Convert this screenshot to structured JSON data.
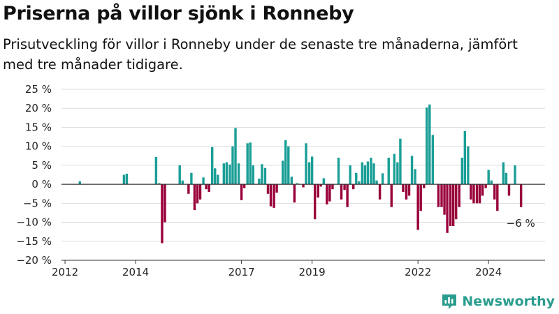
{
  "header": {
    "title": "Priserna på villor sjönk i Ronneby",
    "subtitle": "Prisutveckling för villor i Ronneby under de senaste tre månaderna, jämfört med tre månader tidigare."
  },
  "brand": {
    "name": "Newsworthy"
  },
  "colors": {
    "positive": "#1a9e96",
    "negative": "#99003a",
    "grid": "#dddddd",
    "axis": "#333333",
    "text": "#222222"
  },
  "chart_data": {
    "type": "bar",
    "y_unit": "%",
    "ylim": [
      -20,
      25
    ],
    "yticks": [
      25,
      20,
      15,
      10,
      5,
      0,
      -5,
      -10,
      -15,
      -20
    ],
    "ytick_labels": [
      "25 %",
      "20 %",
      "15 %",
      "10 %",
      "5 %",
      "0 %",
      "−5 %",
      "−10 %",
      "−15 %",
      "−20 %"
    ],
    "xlim": [
      2011.9,
      2025.6
    ],
    "xticks": [
      2012,
      2014,
      2017,
      2019,
      2022,
      2024
    ],
    "xtick_labels": [
      "2012",
      "2014",
      "2017",
      "2019",
      "2022",
      "2024"
    ],
    "grid": true,
    "annotation": "−6 %",
    "values": [
      {
        "x": 2012.42,
        "y": 0.8
      },
      {
        "x": 2013.67,
        "y": 2.5
      },
      {
        "x": 2013.75,
        "y": 2.8
      },
      {
        "x": 2014.58,
        "y": 7.2
      },
      {
        "x": 2014.67,
        "y": 0.3
      },
      {
        "x": 2014.75,
        "y": -15.5
      },
      {
        "x": 2014.83,
        "y": -10
      },
      {
        "x": 2015.25,
        "y": 5
      },
      {
        "x": 2015.33,
        "y": 1
      },
      {
        "x": 2015.5,
        "y": -2.5
      },
      {
        "x": 2015.58,
        "y": 3
      },
      {
        "x": 2015.67,
        "y": -6.8
      },
      {
        "x": 2015.75,
        "y": -5
      },
      {
        "x": 2015.83,
        "y": -4
      },
      {
        "x": 2015.92,
        "y": 1.8
      },
      {
        "x": 2016.0,
        "y": -1.3
      },
      {
        "x": 2016.08,
        "y": -2
      },
      {
        "x": 2016.17,
        "y": 9.8
      },
      {
        "x": 2016.25,
        "y": 4.2
      },
      {
        "x": 2016.33,
        "y": 2.5
      },
      {
        "x": 2016.5,
        "y": 5.5
      },
      {
        "x": 2016.58,
        "y": 5.8
      },
      {
        "x": 2016.67,
        "y": 5.2
      },
      {
        "x": 2016.75,
        "y": 10
      },
      {
        "x": 2016.83,
        "y": 14.8
      },
      {
        "x": 2016.92,
        "y": 5.5
      },
      {
        "x": 2017.0,
        "y": -4.2
      },
      {
        "x": 2017.08,
        "y": -1
      },
      {
        "x": 2017.17,
        "y": 10.8
      },
      {
        "x": 2017.25,
        "y": 11
      },
      {
        "x": 2017.33,
        "y": 5
      },
      {
        "x": 2017.5,
        "y": 1.5
      },
      {
        "x": 2017.58,
        "y": 5.3
      },
      {
        "x": 2017.67,
        "y": 4.3
      },
      {
        "x": 2017.75,
        "y": -2.5
      },
      {
        "x": 2017.83,
        "y": -5.8
      },
      {
        "x": 2017.92,
        "y": -6.2
      },
      {
        "x": 2018.0,
        "y": -2.2
      },
      {
        "x": 2018.17,
        "y": 6.2
      },
      {
        "x": 2018.25,
        "y": 11.6
      },
      {
        "x": 2018.33,
        "y": 10
      },
      {
        "x": 2018.42,
        "y": 2
      },
      {
        "x": 2018.5,
        "y": -4.8
      },
      {
        "x": 2018.58,
        "y": 0.3
      },
      {
        "x": 2018.75,
        "y": -0.8
      },
      {
        "x": 2018.83,
        "y": 10.8
      },
      {
        "x": 2018.92,
        "y": 5.8
      },
      {
        "x": 2019.0,
        "y": 7.3
      },
      {
        "x": 2019.08,
        "y": -9.2
      },
      {
        "x": 2019.17,
        "y": -3.5
      },
      {
        "x": 2019.25,
        "y": -0.6
      },
      {
        "x": 2019.33,
        "y": 1.6
      },
      {
        "x": 2019.42,
        "y": -5.3
      },
      {
        "x": 2019.5,
        "y": -4.5
      },
      {
        "x": 2019.58,
        "y": -1.3
      },
      {
        "x": 2019.75,
        "y": 7
      },
      {
        "x": 2019.83,
        "y": -4
      },
      {
        "x": 2019.92,
        "y": -1.5
      },
      {
        "x": 2020.0,
        "y": -6
      },
      {
        "x": 2020.08,
        "y": 5
      },
      {
        "x": 2020.17,
        "y": -1.3
      },
      {
        "x": 2020.25,
        "y": 3
      },
      {
        "x": 2020.33,
        "y": 0.8
      },
      {
        "x": 2020.42,
        "y": 5.8
      },
      {
        "x": 2020.5,
        "y": 5
      },
      {
        "x": 2020.58,
        "y": 6
      },
      {
        "x": 2020.67,
        "y": 7
      },
      {
        "x": 2020.75,
        "y": 5.5
      },
      {
        "x": 2020.83,
        "y": 1
      },
      {
        "x": 2020.92,
        "y": -4
      },
      {
        "x": 2021.0,
        "y": 2.9
      },
      {
        "x": 2021.17,
        "y": 7
      },
      {
        "x": 2021.25,
        "y": -6
      },
      {
        "x": 2021.33,
        "y": 8
      },
      {
        "x": 2021.42,
        "y": 5.8
      },
      {
        "x": 2021.5,
        "y": 12
      },
      {
        "x": 2021.58,
        "y": -2
      },
      {
        "x": 2021.67,
        "y": -4
      },
      {
        "x": 2021.75,
        "y": -3
      },
      {
        "x": 2021.83,
        "y": 7.5
      },
      {
        "x": 2021.92,
        "y": 4
      },
      {
        "x": 2022.0,
        "y": -12
      },
      {
        "x": 2022.08,
        "y": -7
      },
      {
        "x": 2022.17,
        "y": -1
      },
      {
        "x": 2022.25,
        "y": 20.2
      },
      {
        "x": 2022.33,
        "y": 21
      },
      {
        "x": 2022.42,
        "y": 13
      },
      {
        "x": 2022.58,
        "y": -6
      },
      {
        "x": 2022.67,
        "y": -6
      },
      {
        "x": 2022.75,
        "y": -8
      },
      {
        "x": 2022.83,
        "y": -12.8
      },
      {
        "x": 2022.92,
        "y": -11
      },
      {
        "x": 2023.0,
        "y": -11
      },
      {
        "x": 2023.08,
        "y": -9.2
      },
      {
        "x": 2023.17,
        "y": -6
      },
      {
        "x": 2023.25,
        "y": 7
      },
      {
        "x": 2023.33,
        "y": 14
      },
      {
        "x": 2023.42,
        "y": 10
      },
      {
        "x": 2023.5,
        "y": -4
      },
      {
        "x": 2023.58,
        "y": -5
      },
      {
        "x": 2023.67,
        "y": -5
      },
      {
        "x": 2023.75,
        "y": -5
      },
      {
        "x": 2023.83,
        "y": -3
      },
      {
        "x": 2023.92,
        "y": -1
      },
      {
        "x": 2024.0,
        "y": 3.8
      },
      {
        "x": 2024.08,
        "y": 1
      },
      {
        "x": 2024.17,
        "y": -4
      },
      {
        "x": 2024.25,
        "y": -7
      },
      {
        "x": 2024.42,
        "y": 5.8
      },
      {
        "x": 2024.5,
        "y": 3
      },
      {
        "x": 2024.58,
        "y": -3
      },
      {
        "x": 2024.75,
        "y": 5
      },
      {
        "x": 2024.92,
        "y": -6
      }
    ]
  }
}
